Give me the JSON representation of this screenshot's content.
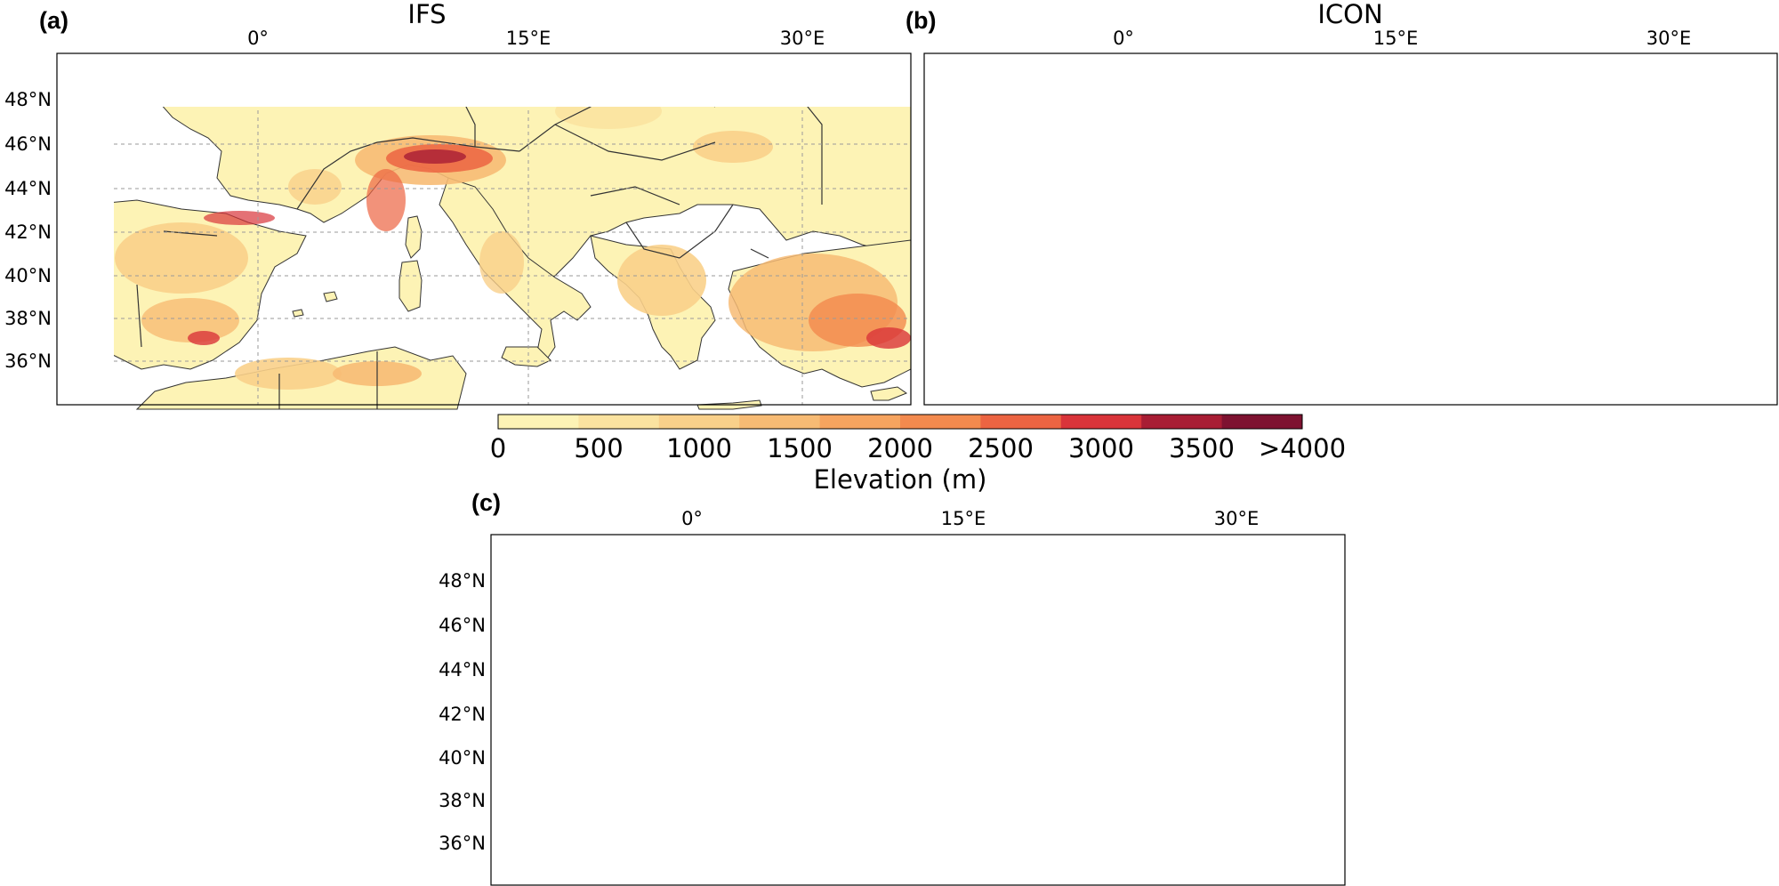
{
  "panels": [
    {
      "id": "a",
      "label": "(a)",
      "title": "IFS"
    },
    {
      "id": "b",
      "label": "(b)",
      "title": "ICON"
    },
    {
      "id": "c",
      "label": "(c)",
      "title": ""
    }
  ],
  "longitude_ticks": [
    "0°",
    "15°E",
    "30°E"
  ],
  "latitude_ticks": [
    "48°N",
    "46°N",
    "44°N",
    "42°N",
    "40°N",
    "38°N",
    "36°N"
  ],
  "colorbar": {
    "label": "Elevation (m)",
    "tick_labels": [
      "0",
      "500",
      "1000",
      "1500",
      "2000",
      "2500",
      "3000",
      "3500",
      ">4000"
    ],
    "colors": [
      "#fdf3b5",
      "#fbe3a0",
      "#f9d08a",
      "#f7bb74",
      "#f6a45f",
      "#f38a4e",
      "#ec6442",
      "#d9343a",
      "#a81d34",
      "#7e1230"
    ]
  },
  "map_colors": {
    "ocean": "#95b4de",
    "land": "#ffffff",
    "domain_box": "#dd1c1c"
  }
}
